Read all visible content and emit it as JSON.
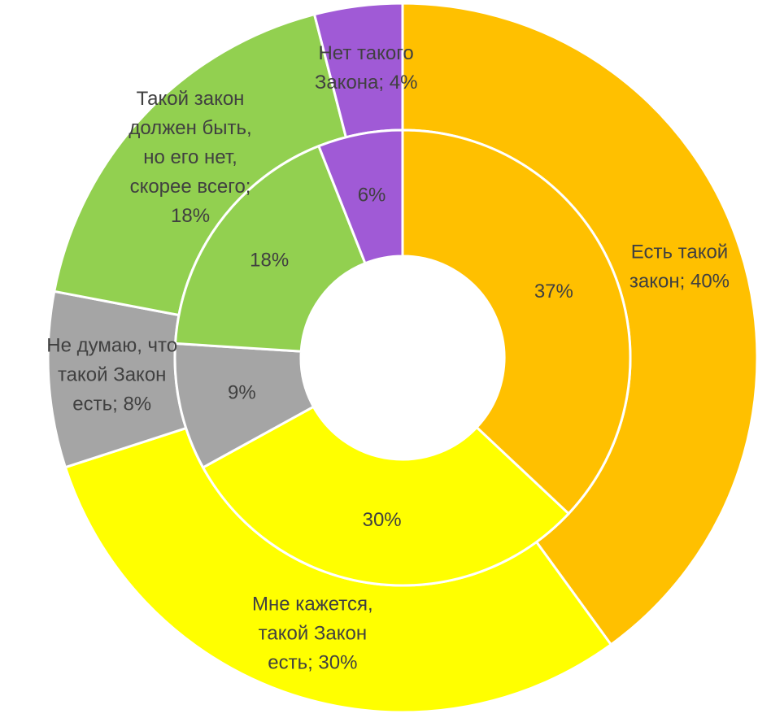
{
  "chart_data": {
    "type": "donut",
    "series": [
      {
        "colors": [
          "#FFC000",
          "#FFFF00",
          "#A5A5A5",
          "#92D050",
          "#A05AD6"
        ],
        "values": [
          40,
          30,
          8,
          18,
          4
        ],
        "value_labels": [
          "Есть такой закон; 40%",
          "Мне кажется, такой Закон есть; 30%",
          "Не думаю, что такой Закон есть; 8%",
          "Такой закон должен быть, но его нет, скорее всего; 18%",
          "Нет такого Закона; 4%"
        ]
      },
      {
        "colors": [
          "#FFC000",
          "#FFFF00",
          "#A5A5A5",
          "#92D050",
          "#A05AD6"
        ],
        "values": [
          37,
          30,
          9,
          18,
          6
        ],
        "value_labels": [
          "37%",
          "30%",
          "9%",
          "18%",
          "6%"
        ]
      }
    ]
  }
}
